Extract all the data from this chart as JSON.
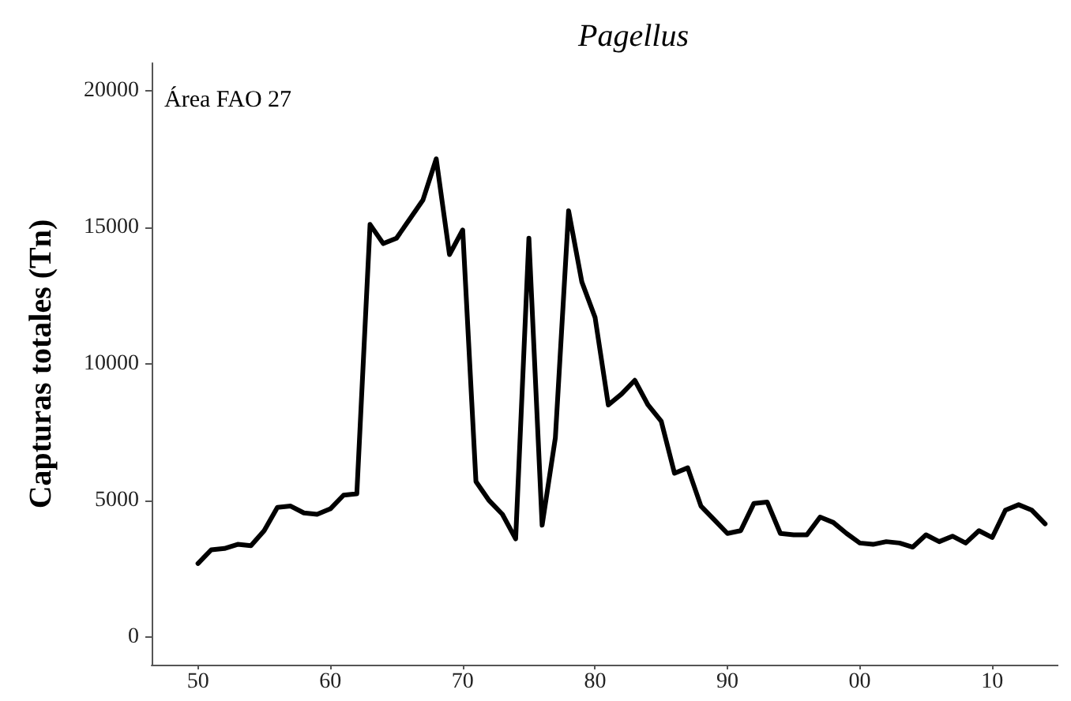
{
  "chart_data": {
    "type": "line",
    "title": "Pagellus",
    "ylabel": "Capturas totales (Tn)",
    "annotations": [
      "Área FAO 27"
    ],
    "x": [
      1950,
      1951,
      1952,
      1953,
      1954,
      1955,
      1956,
      1957,
      1958,
      1959,
      1960,
      1961,
      1962,
      1963,
      1964,
      1965,
      1966,
      1967,
      1968,
      1969,
      1970,
      1971,
      1972,
      1973,
      1974,
      1975,
      1976,
      1977,
      1978,
      1979,
      1980,
      1981,
      1982,
      1983,
      1984,
      1985,
      1986,
      1987,
      1988,
      1989,
      1990,
      1991,
      1992,
      1993,
      1994,
      1995,
      1996,
      1997,
      1998,
      1999,
      2000,
      2001,
      2002,
      2003,
      2004,
      2005,
      2006,
      2007,
      2008,
      2009,
      2010,
      2011,
      2012,
      2013,
      2014
    ],
    "series": [
      {
        "color": "#000000",
        "values": [
          2700,
          3200,
          3250,
          3400,
          3350,
          3900,
          4750,
          4800,
          4550,
          4500,
          4700,
          5200,
          5250,
          15100,
          14400,
          14600,
          15300,
          16000,
          17500,
          14000,
          14900,
          5700,
          5000,
          4500,
          3600,
          14600,
          4100,
          7300,
          15600,
          13000,
          11700,
          8500,
          8900,
          9400,
          8500,
          7900,
          6000,
          6200,
          4800,
          4300,
          3800,
          3900,
          4900,
          4950,
          3800,
          3750,
          3750,
          4400,
          4200,
          3800,
          3450,
          3400,
          3500,
          3450,
          3300,
          3750,
          3500,
          3700,
          3450,
          3900,
          3650,
          4650,
          4850,
          4650,
          4150
        ]
      }
    ],
    "xlim": [
      1946.5,
      2015
    ],
    "xticks": [
      {
        "value": 1950,
        "label": "50"
      },
      {
        "value": 1960,
        "label": "60"
      },
      {
        "value": 1970,
        "label": "70"
      },
      {
        "value": 1980,
        "label": "80"
      },
      {
        "value": 1990,
        "label": "90"
      },
      {
        "value": 2000,
        "label": "00"
      },
      {
        "value": 2010,
        "label": "10"
      }
    ],
    "ylim": [
      -1000,
      21000
    ],
    "yticks": [
      0,
      5000,
      10000,
      15000,
      20000
    ],
    "grid": false,
    "marker": "none",
    "line_style": "solid"
  }
}
